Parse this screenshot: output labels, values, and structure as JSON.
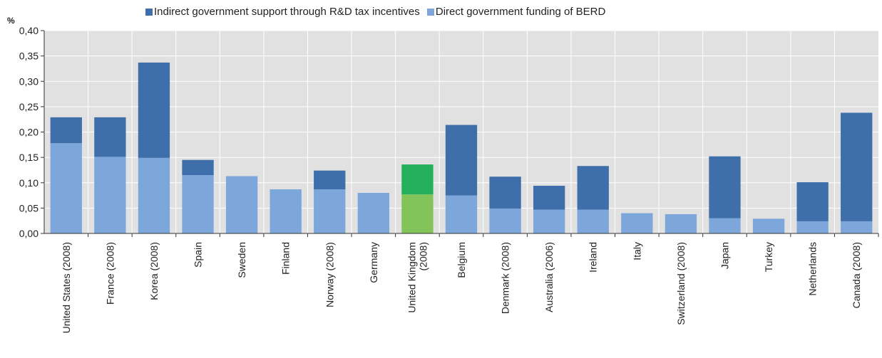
{
  "chart_data": {
    "type": "bar",
    "stacked": true,
    "unit_label": "%",
    "ylim": [
      0,
      0.4
    ],
    "yticks": [
      "0,00",
      "0,05",
      "0,10",
      "0,15",
      "0,20",
      "0,25",
      "0,30",
      "0,35",
      "0,40"
    ],
    "grid": true,
    "legend_position": "top-center",
    "categories": [
      "United States (2008)",
      "France (2008)",
      "Korea (2008)",
      "Spain",
      "Sweden",
      "Finland",
      "Norway (2008)",
      "Germany",
      "United Kingdom (2008)",
      "Belgium",
      "Denmark (2008)",
      "Australia (2006)",
      "Ireland",
      "Italy",
      "Switzerland (2008)",
      "Japan",
      "Turkey",
      "Netherlands",
      "Canada (2008)"
    ],
    "series": [
      {
        "name": "Direct government funding of BERD",
        "color": "#7da7da",
        "values": [
          0.178,
          0.151,
          0.149,
          0.115,
          0.113,
          0.087,
          0.087,
          0.08,
          0.077,
          0.075,
          0.049,
          0.047,
          0.047,
          0.04,
          0.038,
          0.03,
          0.029,
          0.024,
          0.024
        ]
      },
      {
        "name": "Indirect government support through R&D tax incentives",
        "color": "#3f6fab",
        "values": [
          0.051,
          0.078,
          0.188,
          0.03,
          0.0,
          0.0,
          0.037,
          0.0,
          0.059,
          0.139,
          0.063,
          0.047,
          0.086,
          0.0,
          0.0,
          0.122,
          0.0,
          0.077,
          0.214
        ]
      }
    ],
    "highlight": {
      "category": "United Kingdom (2008)",
      "colors": {
        "Direct government funding of BERD": "#82c35a",
        "Indirect government support through R&D tax incentives": "#24b05c"
      }
    }
  },
  "legend": {
    "indirect": "Indirect government support through R&D tax incentives",
    "direct": "Direct government funding of BERD"
  }
}
